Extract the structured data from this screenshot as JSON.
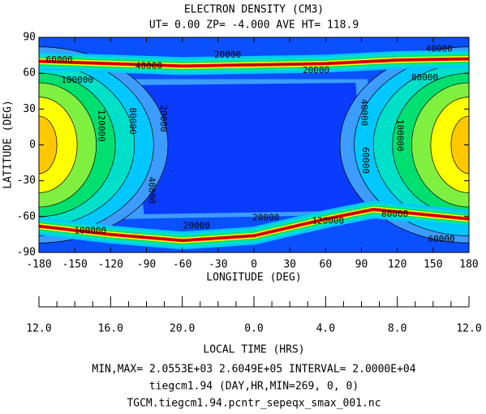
{
  "chart_data": {
    "type": "contour",
    "title": "ELECTRON DENSITY (CM3)",
    "subtitle": "UT= 0.00 ZP= -4.000 AVE HT= 118.9",
    "xlabel": "LONGITUDE (DEG)",
    "ylabel": "LATITUDE (DEG)",
    "xlim": [
      -180,
      180
    ],
    "xticks": [
      -180,
      -150,
      -120,
      -90,
      -60,
      -30,
      0,
      30,
      60,
      90,
      120,
      150,
      180
    ],
    "ylim": [
      -90,
      90
    ],
    "yticks": [
      -90,
      -60,
      -30,
      0,
      30,
      60,
      90
    ],
    "x2label": "LOCAL TIME (HRS)",
    "x2lim": [
      12,
      36
    ],
    "x2ticks": [
      {
        "value": 12,
        "label": "12.0"
      },
      {
        "value": 16,
        "label": "16.0"
      },
      {
        "value": 20,
        "label": "20.0"
      },
      {
        "value": 24,
        "label": "0.0"
      },
      {
        "value": 28,
        "label": "4.0"
      },
      {
        "value": 32,
        "label": "8.0"
      },
      {
        "value": 36,
        "label": "12.0"
      }
    ],
    "x2minor_ticks": [
      13,
      14,
      15,
      17,
      18,
      19,
      21,
      22,
      23,
      25,
      26,
      27,
      29,
      30,
      31,
      33,
      34,
      35
    ],
    "levels": [
      0,
      20000,
      40000,
      60000,
      80000,
      100000,
      120000,
      140000,
      160000,
      180000,
      200000,
      220000,
      240000
    ],
    "colors": [
      "#0a3cff",
      "#3c9cff",
      "#00c8ff",
      "#00e0c8",
      "#00e070",
      "#80f040",
      "#ffff00",
      "#ffc800",
      "#ff8000",
      "#ff0000",
      "#c80000",
      "#a00000",
      "#ff00ff"
    ],
    "contour_labels": [
      {
        "value": 60000,
        "x": -163,
        "y": 71
      },
      {
        "value": 40000,
        "x": -88,
        "y": 66
      },
      {
        "value": 20000,
        "x": -22,
        "y": 75
      },
      {
        "value": 20000,
        "x": 52,
        "y": 62
      },
      {
        "value": 40000,
        "x": 155,
        "y": 80
      },
      {
        "value": 100000,
        "x": -148,
        "y": 54
      },
      {
        "value": 80000,
        "x": 143,
        "y": 56
      },
      {
        "value": 120000,
        "x": -128,
        "y": 16
      },
      {
        "value": 80000,
        "x": -102,
        "y": 20
      },
      {
        "value": 20000,
        "x": -76,
        "y": 22
      },
      {
        "value": 40000,
        "x": -86,
        "y": -38
      },
      {
        "value": 40000,
        "x": 92,
        "y": 27
      },
      {
        "value": 60000,
        "x": 93,
        "y": -13
      },
      {
        "value": 100000,
        "x": 122,
        "y": 8
      },
      {
        "value": 20000,
        "x": -48,
        "y": -68
      },
      {
        "value": 20000,
        "x": 10,
        "y": -61
      },
      {
        "value": 120000,
        "x": 62,
        "y": -64
      },
      {
        "value": 80000,
        "x": 118,
        "y": -58
      },
      {
        "value": 100000,
        "x": -137,
        "y": -72
      },
      {
        "value": 60000,
        "x": 157,
        "y": -79
      }
    ],
    "footer": [
      "MIN,MAX=  2.0553E+03  2.6049E+05 INTERVAL=  2.0000E+04",
      "tiegcm1.94 (DAY,HR,MIN=269, 0, 0)",
      "TGCM.tiegcm1.94.pcntr_sepeqx_smax_001.nc"
    ]
  }
}
